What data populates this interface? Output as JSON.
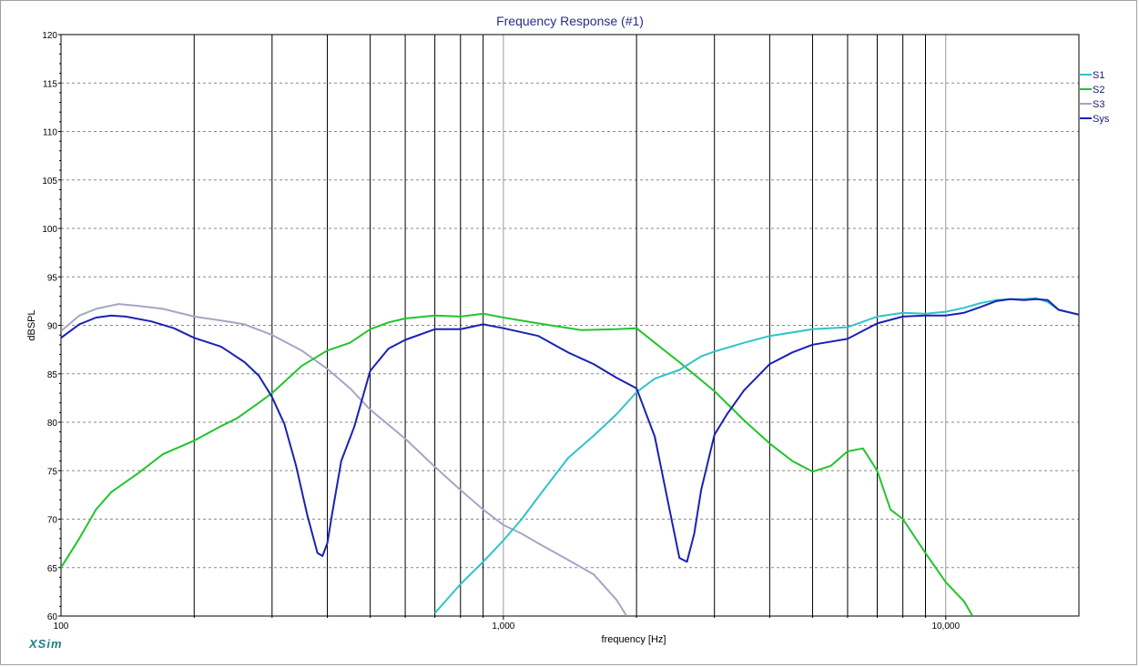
{
  "brand": "XSim",
  "chart_data": {
    "type": "line",
    "title": "Frequency Response (#1)",
    "xlabel": "frequency [Hz]",
    "ylabel": "dBSPL",
    "xscale": "log",
    "xlim": [
      100,
      20000
    ],
    "ylim": [
      60,
      120
    ],
    "y_ticks": [
      60,
      65,
      70,
      75,
      80,
      85,
      90,
      95,
      100,
      105,
      110,
      115,
      120
    ],
    "x_tick_labels": [
      {
        "value": 100,
        "label": "100"
      },
      {
        "value": 1000,
        "label": "1,000"
      },
      {
        "value": 10000,
        "label": "10,000"
      }
    ],
    "grid": true,
    "legend_position": "top-right",
    "colors": {
      "S1": "#2ec4c8",
      "S2": "#22c42c",
      "S3": "#a4a6c4",
      "Sys": "#1a22b4",
      "frame": "#a0a0a0"
    },
    "series": [
      {
        "name": "S1",
        "color": "#2ec4c8",
        "x": [
          700,
          800,
          900,
          1000,
          1100,
          1200,
          1400,
          1600,
          1800,
          2000,
          2200,
          2500,
          2800,
          3000,
          3500,
          4000,
          5000,
          6000,
          7000,
          8000,
          9000,
          10000,
          11000,
          12000,
          13000,
          14000,
          15000,
          16000,
          17000,
          18000,
          20000
        ],
        "y": [
          60.3,
          63.3,
          65.6,
          67.8,
          70,
          72.3,
          76.3,
          78.6,
          80.8,
          83.1,
          84.5,
          85.4,
          86.8,
          87.3,
          88.2,
          88.9,
          89.6,
          89.8,
          90.9,
          91.3,
          91.2,
          91.4,
          91.8,
          92.3,
          92.6,
          92.7,
          92.7,
          92.8,
          92.4,
          91.6,
          91.1
        ]
      },
      {
        "name": "S2",
        "color": "#22c42c",
        "x": [
          100,
          110,
          120,
          130,
          150,
          170,
          200,
          230,
          250,
          280,
          300,
          350,
          400,
          450,
          500,
          550,
          600,
          700,
          800,
          900,
          1000,
          1200,
          1500,
          1800,
          2000,
          2200,
          2500,
          3000,
          3500,
          4000,
          4500,
          5000,
          5500,
          6000,
          6500,
          7000,
          7500,
          8000,
          9000,
          10000,
          11000,
          11500
        ],
        "y": [
          65,
          68,
          71,
          72.8,
          74.8,
          76.7,
          78.1,
          79.6,
          80.4,
          82,
          83,
          85.8,
          87.4,
          88.2,
          89.6,
          90.3,
          90.7,
          91,
          90.9,
          91.2,
          90.8,
          90.2,
          89.5,
          89.6,
          89.7,
          88.2,
          86.2,
          83.2,
          80.2,
          77.8,
          76,
          74.9,
          75.5,
          77,
          77.3,
          75,
          71,
          70,
          66.5,
          63.5,
          61.5,
          60
        ]
      },
      {
        "name": "S3",
        "color": "#a4a6c4",
        "x": [
          100,
          110,
          120,
          135,
          150,
          170,
          200,
          230,
          260,
          300,
          350,
          400,
          450,
          500,
          600,
          700,
          800,
          900,
          1000,
          1100,
          1200,
          1400,
          1600,
          1800,
          1900
        ],
        "y": [
          89.4,
          91,
          91.7,
          92.2,
          92,
          91.7,
          90.9,
          90.5,
          90.1,
          89,
          87.4,
          85.5,
          83.5,
          81.3,
          78.3,
          75.4,
          73,
          71,
          69.4,
          68.5,
          67.5,
          65.8,
          64.3,
          61.7,
          60
        ]
      },
      {
        "name": "Sys",
        "color": "#1a22b4",
        "x": [
          100,
          110,
          120,
          130,
          140,
          160,
          180,
          200,
          230,
          260,
          280,
          300,
          320,
          340,
          360,
          380,
          390,
          400,
          410,
          430,
          460,
          500,
          550,
          600,
          700,
          800,
          900,
          1000,
          1200,
          1400,
          1600,
          1800,
          2000,
          2200,
          2350,
          2500,
          2600,
          2700,
          2800,
          3000,
          3200,
          3500,
          4000,
          4500,
          5000,
          6000,
          7000,
          8000,
          9000,
          10000,
          11000,
          12000,
          13000,
          14000,
          15000,
          16000,
          17000,
          18000,
          20000
        ],
        "y": [
          88.7,
          90.1,
          90.8,
          91,
          90.9,
          90.4,
          89.7,
          88.7,
          87.8,
          86.2,
          84.8,
          82.6,
          79.8,
          75.5,
          70.5,
          66.5,
          66.2,
          67.5,
          70.5,
          76,
          79.5,
          85.3,
          87.6,
          88.5,
          89.6,
          89.6,
          90.1,
          89.7,
          88.9,
          87.2,
          86,
          84.6,
          83.5,
          78.5,
          72,
          66,
          65.6,
          68.5,
          73,
          78.7,
          80.8,
          83.3,
          86,
          87.2,
          88,
          88.6,
          90.2,
          90.9,
          91,
          91,
          91.3,
          91.9,
          92.5,
          92.7,
          92.6,
          92.7,
          92.6,
          91.6,
          91.1
        ]
      }
    ]
  }
}
